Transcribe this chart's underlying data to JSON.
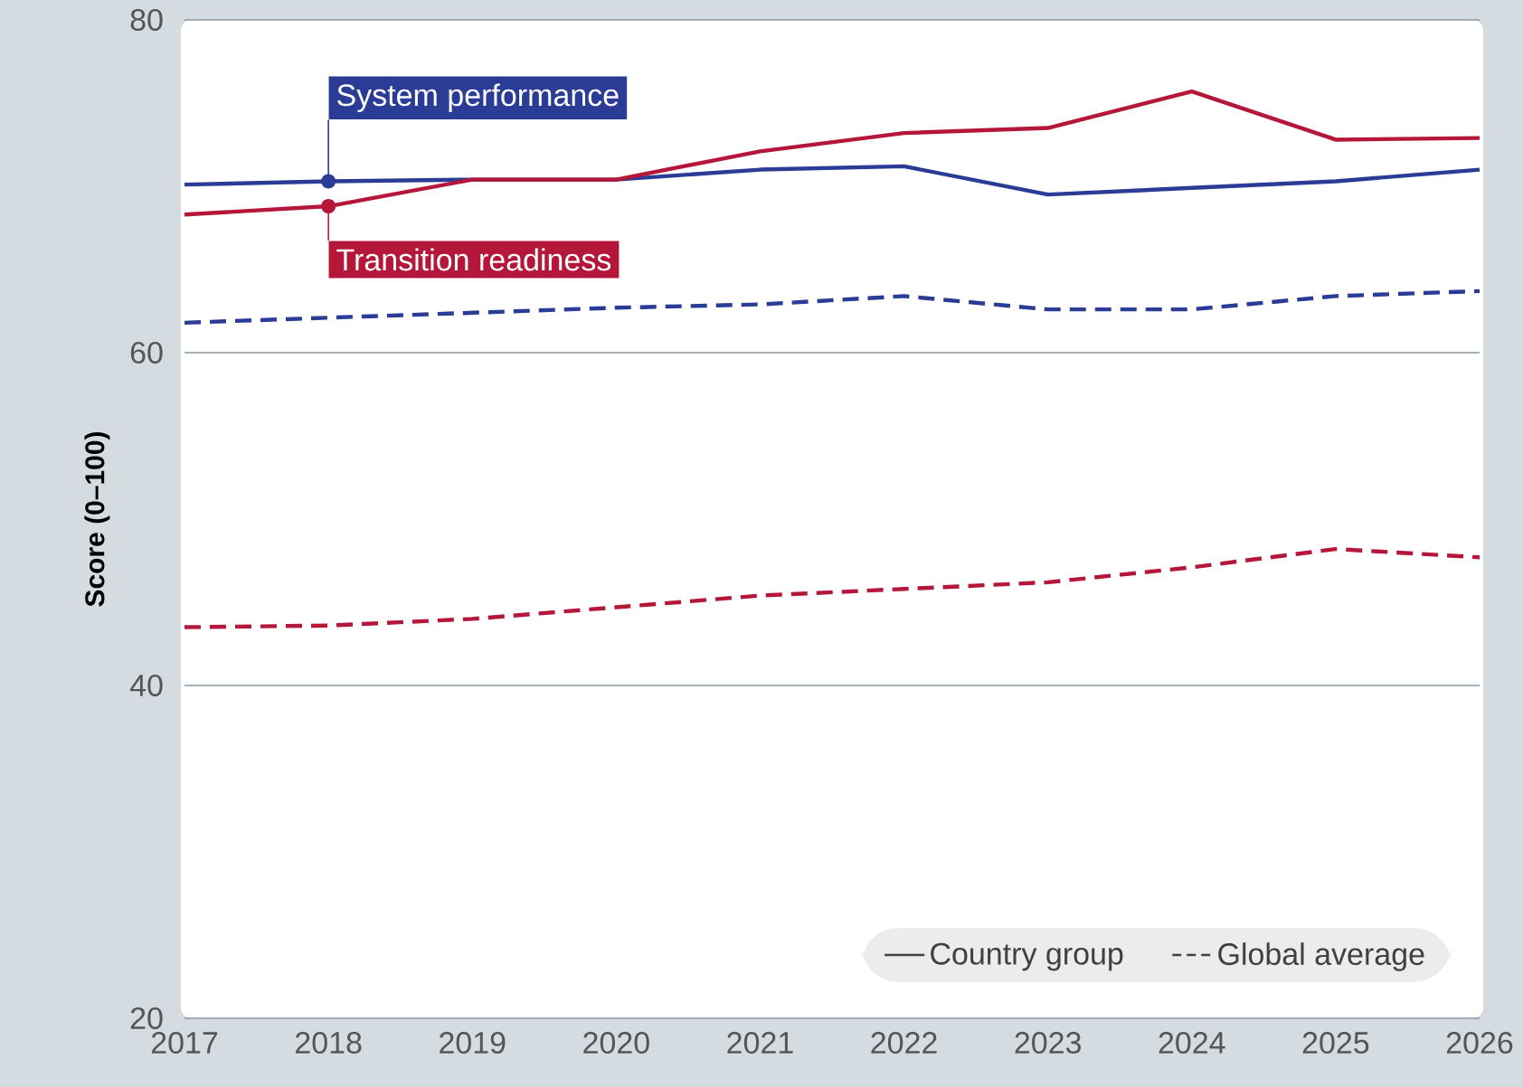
{
  "chart_data": {
    "type": "line",
    "ylabel": "Score (0–100)",
    "x": [
      2017,
      2018,
      2019,
      2020,
      2021,
      2022,
      2023,
      2024,
      2025,
      2026
    ],
    "series": [
      {
        "color": "#2a3c96",
        "line_style": "solid",
        "values": [
          70.1,
          70.3,
          70.4,
          70.4,
          71.0,
          71.2,
          69.5,
          69.9,
          70.3,
          71.0
        ]
      },
      {
        "color": "#b5173a",
        "line_style": "solid",
        "values": [
          68.3,
          68.8,
          70.4,
          70.4,
          72.1,
          73.2,
          73.5,
          75.7,
          72.8,
          72.9
        ]
      },
      {
        "color": "#2a3c96",
        "line_style": "dashed",
        "values": [
          61.8,
          62.1,
          62.4,
          62.7,
          62.9,
          63.4,
          62.6,
          62.6,
          63.4,
          63.7
        ]
      },
      {
        "color": "#b5173a",
        "line_style": "dashed",
        "values": [
          43.5,
          43.6,
          44.0,
          44.7,
          45.4,
          45.8,
          46.2,
          47.1,
          48.2,
          47.7
        ]
      }
    ],
    "annotations": [
      {
        "text": "System performance",
        "x": 2018,
        "y": 70.3
      },
      {
        "text": "Transition readiness",
        "x": 2018,
        "y": 68.8
      },
      "Country group",
      "Global average"
    ],
    "xlim": [
      2017,
      2026
    ],
    "xticks": [
      2017,
      2018,
      2019,
      2020,
      2021,
      2022,
      2023,
      2024,
      2025,
      2026
    ],
    "ylim": [
      20,
      80
    ],
    "yticks": [
      20,
      40,
      60,
      80
    ],
    "grid": "y"
  }
}
